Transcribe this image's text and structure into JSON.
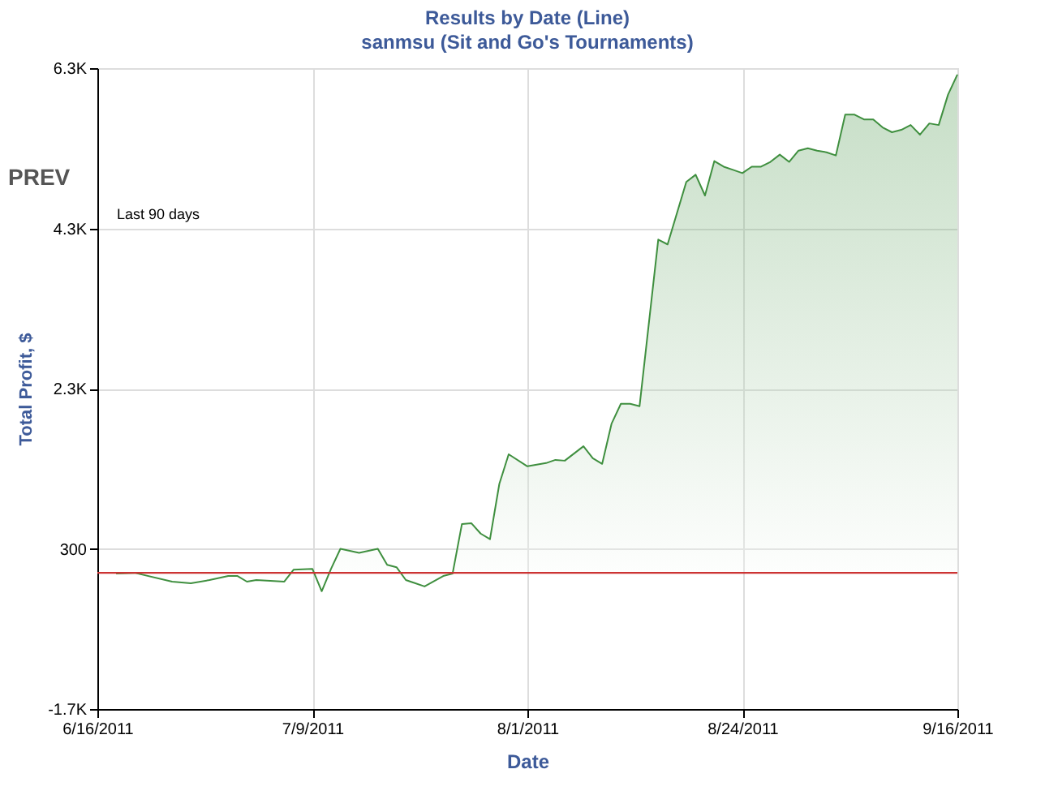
{
  "chart_data": {
    "type": "area",
    "title": "Results by Date (Line)",
    "subtitle": "sanmsu (Sit and Go's Tournaments)",
    "xlabel": "Date",
    "ylabel": "Total Profit, $",
    "annotations": [
      "PREV",
      "Last 90 days"
    ],
    "x": [
      "2011-06-18",
      "2011-06-20",
      "2011-06-24",
      "2011-06-26",
      "2011-06-28",
      "2011-06-30",
      "2011-07-01",
      "2011-07-02",
      "2011-07-03",
      "2011-07-06",
      "2011-07-07",
      "2011-07-09",
      "2011-07-10",
      "2011-07-11",
      "2011-07-12",
      "2011-07-14",
      "2011-07-16",
      "2011-07-17",
      "2011-07-18",
      "2011-07-19",
      "2011-07-21",
      "2011-07-23",
      "2011-07-24",
      "2011-07-25",
      "2011-07-26",
      "2011-07-27",
      "2011-07-28",
      "2011-07-29",
      "2011-07-30",
      "2011-08-01",
      "2011-08-03",
      "2011-08-04",
      "2011-08-05",
      "2011-08-07",
      "2011-08-08",
      "2011-08-09",
      "2011-08-10",
      "2011-08-11",
      "2011-08-12",
      "2011-08-13",
      "2011-08-15",
      "2011-08-16",
      "2011-08-18",
      "2011-08-19",
      "2011-08-20",
      "2011-08-21",
      "2011-08-22",
      "2011-08-23",
      "2011-08-24",
      "2011-08-25",
      "2011-08-26",
      "2011-08-27",
      "2011-08-28",
      "2011-08-29",
      "2011-08-30",
      "2011-08-31",
      "2011-09-01",
      "2011-09-02",
      "2011-09-03",
      "2011-09-04",
      "2011-09-05",
      "2011-09-06",
      "2011-09-07",
      "2011-09-08",
      "2011-09-09",
      "2011-09-10",
      "2011-09-11",
      "2011-09-12",
      "2011-09-13",
      "2011-09-14",
      "2011-09-15",
      "2011-09-16"
    ],
    "series": [
      {
        "color": "#3f8f3f",
        "values": [
          -10,
          0,
          -110,
          -130,
          -90,
          -40,
          -40,
          -110,
          -90,
          -110,
          40,
          50,
          -230,
          50,
          300,
          250,
          300,
          100,
          70,
          -90,
          -170,
          -40,
          -10,
          610,
          620,
          490,
          420,
          1110,
          1480,
          1330,
          1370,
          1410,
          1400,
          1580,
          1430,
          1360,
          1860,
          2110,
          2110,
          2080,
          4160,
          4100,
          4880,
          4970,
          4710,
          5140,
          5070,
          5030,
          4990,
          5070,
          5070,
          5130,
          5220,
          5130,
          5270,
          5300,
          5270,
          5250,
          5210,
          5720,
          5720,
          5660,
          5660,
          5560,
          5500,
          5530,
          5590,
          5470,
          5610,
          5590,
          5970,
          6220
        ]
      }
    ],
    "xlim": [
      "2011-06-16",
      "2011-09-16"
    ],
    "xticks": [
      {
        "value": "2011-06-16",
        "label": "6/16/2011"
      },
      {
        "value": "2011-07-09",
        "label": "7/9/2011"
      },
      {
        "value": "2011-08-01",
        "label": "8/1/2011"
      },
      {
        "value": "2011-08-24",
        "label": "8/24/2011"
      },
      {
        "value": "2011-09-16",
        "label": "9/16/2011"
      }
    ],
    "ylim": [
      -1700,
      6300
    ],
    "yticks": [
      {
        "value": -1700,
        "label": "-1.7K"
      },
      300,
      {
        "value": 2300,
        "label": "2.3K"
      },
      {
        "value": 4300,
        "label": "4.3K"
      },
      {
        "value": 6300,
        "label": "6.3K"
      }
    ],
    "ref_lines": [
      {
        "axis": "y",
        "value": 0,
        "color": "#cc3333"
      }
    ],
    "grid": true
  }
}
